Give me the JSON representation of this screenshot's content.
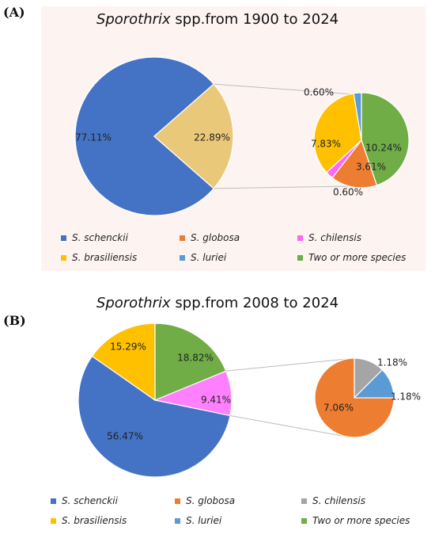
{
  "colors": {
    "s_schenckii": "#4472c4",
    "s_globosa": "#ed7d31",
    "s_chilensis_a": "#ff66ff",
    "s_chilensis_b": "#a5a5a5",
    "s_brasiliensis": "#ffc000",
    "s_luriei": "#5b9bd5",
    "two_or_more": "#70ad47",
    "other_slice": "#eac879",
    "b_chilensis_gray": "#a5a5a5"
  },
  "panels": [
    {
      "label": "(A)",
      "title_italic": "Sporothrix",
      "title_rest": " spp.from 1900 to 2024"
    },
    {
      "label": "(B)",
      "title_italic": "Sporothrix",
      "title_rest": " spp.from 2008 to 2024"
    }
  ],
  "legends": [
    {
      "items": [
        {
          "label": "S. schenckii",
          "color": "#4472c4"
        },
        {
          "label": "S. globosa",
          "color": "#ed7d31"
        },
        {
          "label": "S. chilensis",
          "color": "#ff66ff"
        },
        {
          "label": "S. brasiliensis",
          "color": "#ffc000"
        },
        {
          "label": "S. luriei",
          "color": "#5b9bd5"
        },
        {
          "label": "Two or more species",
          "color": "#70ad47"
        }
      ]
    },
    {
      "items": [
        {
          "label": "S. schenckii",
          "color": "#4472c4"
        },
        {
          "label": "S. globosa",
          "color": "#ed7d31"
        },
        {
          "label": "S. chilensis",
          "color": "#a5a5a5"
        },
        {
          "label": "S. brasiliensis",
          "color": "#ffc000"
        },
        {
          "label": "S. luriei",
          "color": "#5b9bd5"
        },
        {
          "label": "Two or more species",
          "color": "#70ad47"
        }
      ]
    }
  ],
  "chart_data": [
    {
      "type": "pie",
      "title": "Sporothrix spp.from 1900 to 2024",
      "main_pie": [
        {
          "name": "S. schenckii",
          "value": 77.11,
          "label": "77.11%",
          "color": "#4472c4"
        },
        {
          "name": "",
          "value": 22.89,
          "label": "22.89%",
          "color": "#eac879"
        }
      ],
      "sub_pie": [
        {
          "name": "Two or more species",
          "value": 10.24,
          "label": "10.24%",
          "color": "#70ad47"
        },
        {
          "name": "S. globosa",
          "value": 3.61,
          "label": "3.61%",
          "color": "#ed7d31"
        },
        {
          "name": "S. chilensis",
          "value": 0.6,
          "label": "0.60%",
          "color": "#ff66ff"
        },
        {
          "name": "S. brasiliensis",
          "value": 7.83,
          "label": "7.83%",
          "color": "#ffc000"
        },
        {
          "name": "S. luriei",
          "value": 0.6,
          "label": "0.60%",
          "color": "#5b9bd5"
        }
      ]
    },
    {
      "type": "pie",
      "title": "Sporothrix spp.from 2008 to 2024",
      "main_pie": [
        {
          "name": "S. schenckii",
          "value": 56.47,
          "label": "56.47%",
          "color": "#4472c4"
        },
        {
          "name": "S. brasiliensis",
          "value": 15.29,
          "label": "15.29%",
          "color": "#ffc000"
        },
        {
          "name": "Two or more species",
          "value": 18.82,
          "label": "18.82%",
          "color": "#70ad47"
        },
        {
          "name": "",
          "value": 9.41,
          "label": "9.41%",
          "color": "#ff80ff"
        }
      ],
      "sub_pie": [
        {
          "name": "S. chilensis",
          "value": 1.18,
          "label": "1.18%",
          "color": "#a5a5a5"
        },
        {
          "name": "S. luriei",
          "value": 1.18,
          "label": "1.18%",
          "color": "#5b9bd5"
        },
        {
          "name": "S. globosa",
          "value": 7.06,
          "label": "7.06%",
          "color": "#ed7d31"
        }
      ]
    }
  ]
}
